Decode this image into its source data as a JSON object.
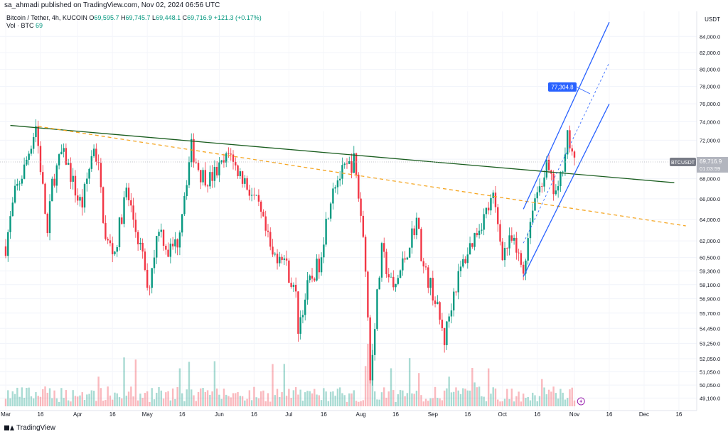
{
  "header": {
    "publish_text": "sa_ahmadi published on TradingView.com, Nov 02, 2024 06:56 UTC"
  },
  "legend": {
    "symbol": "Bitcoin / Tether, 4h, KUCOIN",
    "open_label": "O",
    "open": "69,595.7",
    "high_label": "H",
    "high": "69,745.7",
    "low_label": "L",
    "low": "69,448.1",
    "close_label": "C",
    "close": "69,716.9",
    "change": "+121.3 (+0.17%)",
    "vol_label": "Vol · BTC",
    "vol": "69"
  },
  "price_axis": {
    "currency": "USDT",
    "tag_symbol": "BTCUSDT",
    "tag_price": "69,716.9",
    "tag_countdown": "01:03:59",
    "target_label": "77,304.8"
  },
  "footer": {
    "brand": "TradingView"
  },
  "colors": {
    "up": "#089981",
    "down": "#f23645",
    "trendline": "#1b5e20",
    "dashed": "#f5a623",
    "channel": "#2962ff",
    "target_box": "#2962ff"
  },
  "chart_data": {
    "type": "candlestick",
    "title": "Bitcoin / Tether, 4h, KUCOIN",
    "y_scale": "log",
    "ylim": [
      48500,
      87000
    ],
    "y_ticks": [
      "84,000.0",
      "82,000.0",
      "80,000.0",
      "78,000.0",
      "76,000.0",
      "74,000.0",
      "72,000.0",
      "70,000.0",
      "68,000.0",
      "66,000.0",
      "64,000.0",
      "62,000.0",
      "60,500.0",
      "59,300.0",
      "58,100.0",
      "56,900.0",
      "55,700.0",
      "54,450.0",
      "53,250.0",
      "52,050.0",
      "51,050.0",
      "50,050.0",
      "49,100.0"
    ],
    "x_labels": [
      "Mar",
      "16",
      "Apr",
      "16",
      "May",
      "16",
      "Jun",
      "16",
      "Jul",
      "16",
      "Aug",
      "16",
      "Sep",
      "16",
      "Oct",
      "16",
      "Nov",
      "16",
      "Dec",
      "16"
    ],
    "x_range": [
      "2024-03-01",
      "2024-12-20"
    ],
    "price_path": [
      [
        "2024-03-01",
        61500
      ],
      [
        "2024-03-05",
        66500
      ],
      [
        "2024-03-09",
        69000
      ],
      [
        "2024-03-14",
        73600
      ],
      [
        "2024-03-19",
        62500
      ],
      [
        "2024-03-21",
        67500
      ],
      [
        "2024-03-25",
        70500
      ],
      [
        "2024-03-27",
        70000
      ],
      [
        "2024-04-01",
        66000
      ],
      [
        "2024-04-03",
        65500
      ],
      [
        "2024-04-08",
        71500
      ],
      [
        "2024-04-10",
        69000
      ],
      [
        "2024-04-13",
        62000
      ],
      [
        "2024-04-17",
        61000
      ],
      [
        "2024-04-22",
        66800
      ],
      [
        "2024-04-25",
        64000
      ],
      [
        "2024-04-30",
        59500
      ],
      [
        "2024-05-01",
        57200
      ],
      [
        "2024-05-06",
        63500
      ],
      [
        "2024-05-10",
        61000
      ],
      [
        "2024-05-14",
        62000
      ],
      [
        "2024-05-20",
        71200
      ],
      [
        "2024-05-24",
        68500
      ],
      [
        "2024-05-28",
        68000
      ],
      [
        "2024-06-03",
        69500
      ],
      [
        "2024-06-06",
        71000
      ],
      [
        "2024-06-07",
        69500
      ],
      [
        "2024-06-12",
        67800
      ],
      [
        "2024-06-18",
        65000
      ],
      [
        "2024-06-24",
        60500
      ],
      [
        "2024-06-28",
        61000
      ],
      [
        "2024-07-04",
        57000
      ],
      [
        "2024-07-05",
        54500
      ],
      [
        "2024-07-09",
        57800
      ],
      [
        "2024-07-14",
        60000
      ],
      [
        "2024-07-20",
        67500
      ],
      [
        "2024-07-29",
        69800
      ],
      [
        "2024-08-01",
        64500
      ],
      [
        "2024-08-03",
        60000
      ],
      [
        "2024-08-05",
        50500
      ],
      [
        "2024-08-07",
        55000
      ],
      [
        "2024-08-10",
        61000
      ],
      [
        "2024-08-15",
        57500
      ],
      [
        "2024-08-20",
        60500
      ],
      [
        "2024-08-25",
        64000
      ],
      [
        "2024-08-28",
        59500
      ],
      [
        "2024-09-01",
        57500
      ],
      [
        "2024-09-06",
        53500
      ],
      [
        "2024-09-10",
        57500
      ],
      [
        "2024-09-14",
        60000
      ],
      [
        "2024-09-20",
        63000
      ],
      [
        "2024-09-27",
        66000
      ],
      [
        "2024-10-01",
        61000
      ],
      [
        "2024-10-05",
        62000
      ],
      [
        "2024-10-10",
        59300
      ],
      [
        "2024-10-14",
        65500
      ],
      [
        "2024-10-20",
        69200
      ],
      [
        "2024-10-23",
        66800
      ],
      [
        "2024-10-25",
        66500
      ],
      [
        "2024-10-29",
        72800
      ],
      [
        "2024-10-31",
        70000
      ],
      [
        "2024-11-01",
        69500
      ]
    ],
    "annotations": [
      {
        "type": "trendline",
        "style": "solid",
        "color": "#1b5e20",
        "from": [
          "2024-03-03",
          73600
        ],
        "to": [
          "2024-12-14",
          67600
        ]
      },
      {
        "type": "trendline",
        "style": "dashed",
        "color": "#f5a623",
        "from": [
          "2024-03-15",
          73500
        ],
        "to": [
          "2024-12-19",
          63400
        ]
      },
      {
        "type": "channel_upper",
        "color": "#2962ff",
        "from": [
          "2024-10-10",
          65000
        ],
        "to": [
          "2024-11-16",
          85800
        ]
      },
      {
        "type": "channel_lower",
        "color": "#2962ff",
        "from": [
          "2024-10-10",
          58800
        ],
        "to": [
          "2024-11-16",
          76000
        ]
      },
      {
        "type": "channel_mid",
        "style": "dashed",
        "color": "#2962ff",
        "from": [
          "2024-10-10",
          61800
        ],
        "to": [
          "2024-11-16",
          80800
        ]
      },
      {
        "type": "target",
        "value": 77304.8
      }
    ]
  }
}
